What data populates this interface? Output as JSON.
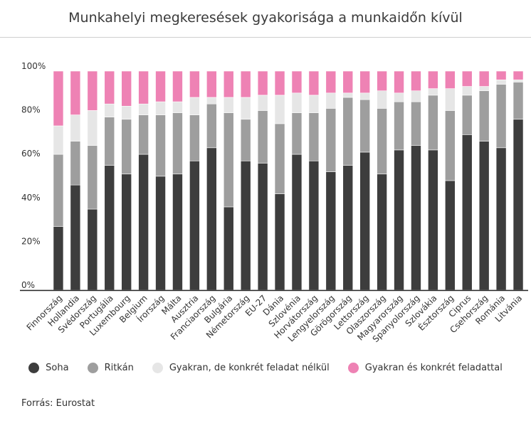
{
  "title": "Munkahelyi megkeresések gyakorisága a munkaidőn kívül",
  "source": "Forrás: Eurostat",
  "chart_data": {
    "type": "bar",
    "stacked": true,
    "title": "Munkahelyi megkeresések gyakorisága a munkaidőn kívül",
    "xlabel": "",
    "ylabel": "",
    "ylim": [
      0,
      100
    ],
    "yticks": [
      "0%",
      "20%",
      "40%",
      "60%",
      "80%",
      "100%"
    ],
    "ytick_values": [
      0,
      20,
      40,
      60,
      80,
      100
    ],
    "grid": false,
    "legend_position": "bottom",
    "categories": [
      "Finnország",
      "Hollandia",
      "Svédország",
      "Portugália",
      "Luxembourg",
      "Belgium",
      "Írország",
      "Málta",
      "Ausztria",
      "Franciaország",
      "Bulgária",
      "Németország",
      "EU-27",
      "Dánia",
      "Szlovénia",
      "Horvátország",
      "Lengyelország",
      "Görögország",
      "Lettország",
      "Olaszország",
      "Magyarország",
      "Spanyolország",
      "Szlovákia",
      "Észtország",
      "Ciprus",
      "Csehország",
      "Románia",
      "Litvánia"
    ],
    "series": [
      {
        "name": "Soha",
        "color": "#3d3d3d",
        "values": [
          29,
          48,
          37,
          57,
          53,
          62,
          52,
          53,
          59,
          65,
          38,
          59,
          58,
          44,
          62,
          59,
          54,
          57,
          63,
          53,
          64,
          66,
          64,
          50,
          71,
          68,
          65,
          78
        ]
      },
      {
        "name": "Ritkán",
        "color": "#9e9e9e",
        "values": [
          33,
          20,
          29,
          22,
          25,
          18,
          28,
          28,
          21,
          20,
          43,
          19,
          24,
          32,
          19,
          22,
          29,
          31,
          24,
          30,
          22,
          20,
          25,
          32,
          18,
          23,
          29,
          17
        ]
      },
      {
        "name": "Gyakran, de konkrét feladat nélkül",
        "color": "#e6e6e6",
        "values": [
          13,
          12,
          16,
          6,
          6,
          5,
          6,
          5,
          8,
          3,
          7,
          10,
          7,
          13,
          9,
          8,
          7,
          2,
          3,
          8,
          4,
          5,
          3,
          10,
          4,
          2,
          2,
          1
        ]
      },
      {
        "name": "Gyakran és konkrét feladattal",
        "color": "#ee82b4",
        "values": [
          25,
          20,
          18,
          15,
          16,
          15,
          14,
          14,
          12,
          12,
          12,
          12,
          11,
          11,
          10,
          11,
          10,
          10,
          10,
          9,
          10,
          9,
          8,
          8,
          7,
          7,
          4,
          4
        ]
      }
    ]
  }
}
